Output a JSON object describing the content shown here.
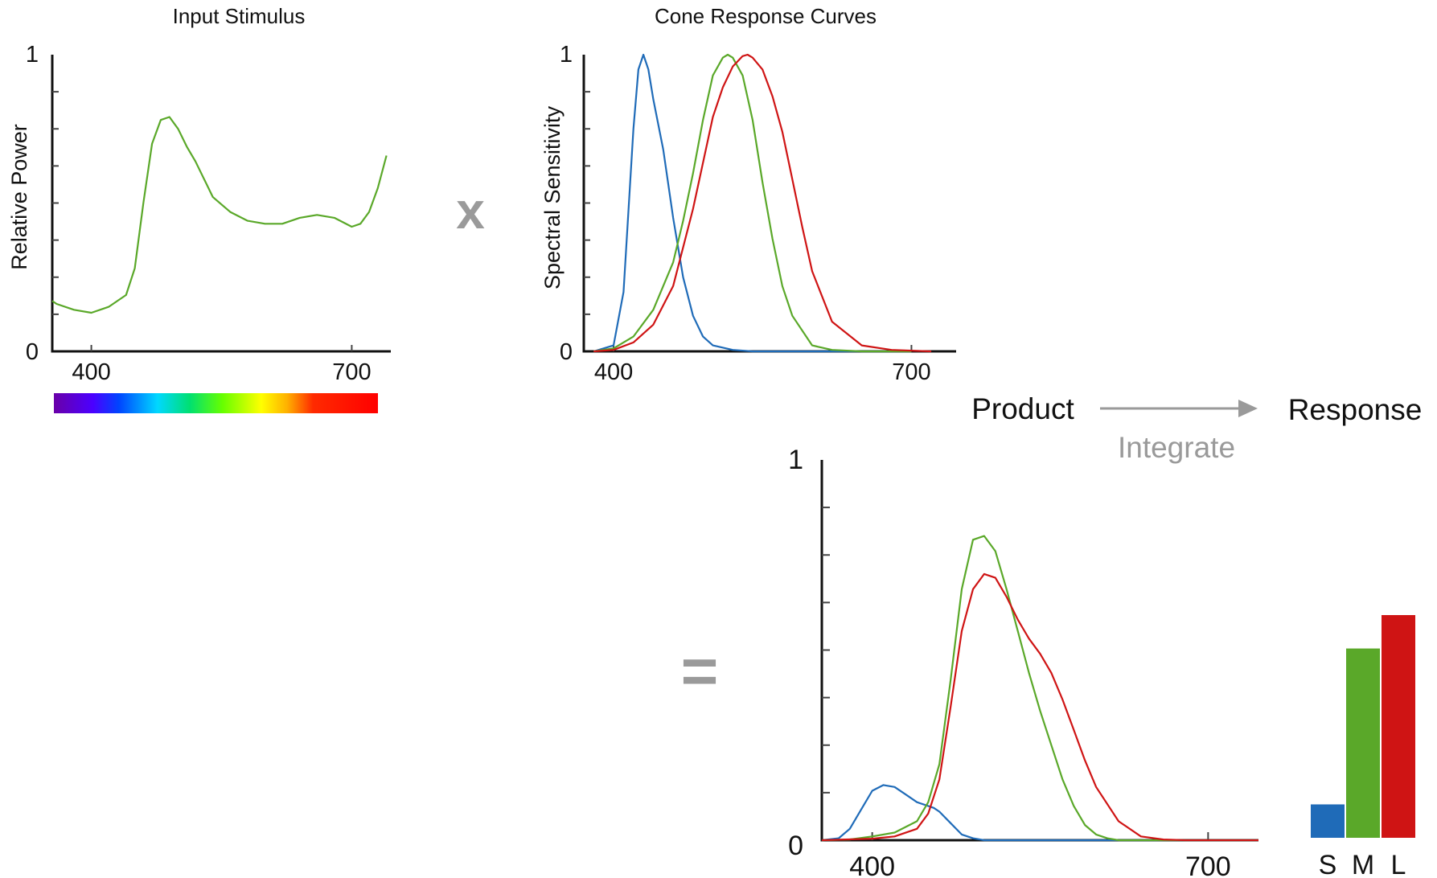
{
  "colors": {
    "s_cone": "#1f6bb8",
    "m_cone": "#5aa829",
    "l_cone": "#cf1414",
    "operator_gray": "#9a9a9a"
  },
  "operators": {
    "multiply": "x",
    "equals": "="
  },
  "flow": {
    "product": "Product",
    "integrate": "Integrate",
    "response": "Response"
  },
  "chart_data": [
    {
      "type": "line",
      "title": "Input Stimulus",
      "xlabel": "",
      "ylabel": "Relative Power",
      "xlim": [
        355,
        745
      ],
      "ylim": [
        0,
        1
      ],
      "xticks": [
        400,
        700
      ],
      "yticks_labels": [
        "0",
        "1"
      ],
      "spectrum_bar": true,
      "series": [
        {
          "color": "green",
          "x": [
            355,
            360,
            380,
            400,
            420,
            440,
            450,
            460,
            470,
            480,
            490,
            500,
            510,
            520,
            540,
            560,
            580,
            600,
            620,
            640,
            660,
            680,
            700,
            710,
            720,
            730,
            740
          ],
          "y": [
            0.17,
            0.16,
            0.14,
            0.13,
            0.15,
            0.19,
            0.28,
            0.5,
            0.7,
            0.78,
            0.79,
            0.75,
            0.69,
            0.64,
            0.52,
            0.47,
            0.44,
            0.43,
            0.43,
            0.45,
            0.46,
            0.45,
            0.42,
            0.43,
            0.47,
            0.55,
            0.66
          ]
        }
      ]
    },
    {
      "type": "line",
      "title": "Cone Response Curves",
      "xlabel": "",
      "ylabel": "Spectral Sensitivity",
      "xlim": [
        370,
        745
      ],
      "ylim": [
        0,
        1
      ],
      "xticks": [
        400,
        700
      ],
      "yticks_labels": [
        "0",
        "1"
      ],
      "series": [
        {
          "color": "blue",
          "x": [
            380,
            400,
            410,
            420,
            425,
            430,
            435,
            440,
            450,
            460,
            470,
            480,
            490,
            500,
            520,
            540,
            560,
            600,
            700
          ],
          "y": [
            0.0,
            0.02,
            0.2,
            0.75,
            0.95,
            1.0,
            0.95,
            0.85,
            0.68,
            0.45,
            0.25,
            0.12,
            0.05,
            0.02,
            0.005,
            0.0,
            0.0,
            0.0,
            0.0
          ]
        },
        {
          "color": "green",
          "x": [
            380,
            400,
            420,
            440,
            460,
            470,
            480,
            490,
            500,
            510,
            515,
            520,
            530,
            540,
            550,
            560,
            570,
            580,
            600,
            620,
            650,
            700
          ],
          "y": [
            0.0,
            0.01,
            0.05,
            0.14,
            0.3,
            0.44,
            0.6,
            0.78,
            0.93,
            0.99,
            1.0,
            0.99,
            0.93,
            0.78,
            0.57,
            0.38,
            0.22,
            0.12,
            0.02,
            0.005,
            0.0,
            0.0
          ]
        },
        {
          "color": "red",
          "x": [
            380,
            400,
            420,
            440,
            460,
            480,
            500,
            510,
            520,
            530,
            535,
            540,
            550,
            560,
            570,
            580,
            590,
            600,
            620,
            650,
            680,
            720
          ],
          "y": [
            0.0,
            0.005,
            0.03,
            0.09,
            0.22,
            0.48,
            0.79,
            0.89,
            0.96,
            0.995,
            1.0,
            0.99,
            0.95,
            0.86,
            0.74,
            0.58,
            0.42,
            0.27,
            0.1,
            0.02,
            0.005,
            0.0
          ]
        }
      ]
    },
    {
      "type": "line",
      "title": "",
      "xlabel": "",
      "ylabel": "",
      "xlim": [
        355,
        745
      ],
      "ylim": [
        0,
        1
      ],
      "xticks": [
        400,
        700
      ],
      "yticks_labels": [
        "0",
        "1"
      ],
      "series": [
        {
          "color": "blue",
          "x": [
            355,
            370,
            380,
            390,
            400,
            410,
            420,
            430,
            440,
            450,
            455,
            460,
            470,
            480,
            490,
            500,
            520,
            540,
            600,
            745
          ],
          "y": [
            0.0,
            0.005,
            0.03,
            0.08,
            0.13,
            0.145,
            0.14,
            0.12,
            0.1,
            0.09,
            0.085,
            0.075,
            0.045,
            0.015,
            0.005,
            0.0,
            0.0,
            0.0,
            0.0,
            0.0
          ]
        },
        {
          "color": "green",
          "x": [
            355,
            380,
            400,
            420,
            440,
            450,
            460,
            470,
            480,
            490,
            500,
            510,
            520,
            530,
            540,
            550,
            560,
            570,
            580,
            590,
            600,
            610,
            620,
            640,
            745
          ],
          "y": [
            0.0,
            0.002,
            0.01,
            0.02,
            0.05,
            0.1,
            0.2,
            0.42,
            0.66,
            0.79,
            0.8,
            0.76,
            0.66,
            0.55,
            0.44,
            0.34,
            0.25,
            0.16,
            0.09,
            0.04,
            0.015,
            0.005,
            0.0,
            0.0,
            0.0
          ]
        },
        {
          "color": "red",
          "x": [
            355,
            400,
            420,
            440,
            450,
            460,
            470,
            480,
            490,
            500,
            510,
            520,
            530,
            540,
            550,
            560,
            570,
            580,
            590,
            600,
            620,
            640,
            660,
            680,
            745
          ],
          "y": [
            0.0,
            0.004,
            0.01,
            0.03,
            0.07,
            0.16,
            0.35,
            0.55,
            0.66,
            0.7,
            0.69,
            0.64,
            0.58,
            0.53,
            0.49,
            0.44,
            0.37,
            0.29,
            0.21,
            0.14,
            0.05,
            0.01,
            0.002,
            0.0,
            0.0
          ]
        }
      ]
    },
    {
      "type": "bar",
      "title": "",
      "categories": [
        "S",
        "M",
        "L"
      ],
      "colors": [
        "blue",
        "green",
        "red"
      ],
      "values": [
        0.15,
        0.85,
        1.0
      ],
      "ylim": [
        0,
        1
      ]
    }
  ]
}
